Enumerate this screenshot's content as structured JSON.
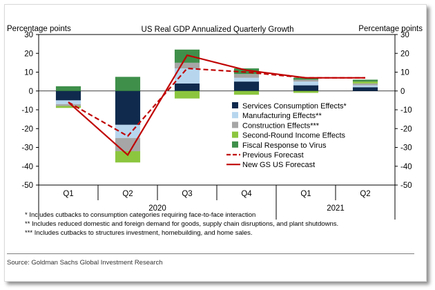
{
  "chart_data": {
    "type": "bar",
    "stacked": true,
    "title": "US Real GDP Annualized Quarterly Growth",
    "ylabel_left": "Percentage points",
    "ylabel_right": "Percentage points",
    "ylim": [
      -50,
      30
    ],
    "yticks": [
      30,
      20,
      10,
      0,
      -10,
      -20,
      -30,
      -40,
      -50
    ],
    "categories": [
      "Q1",
      "Q2",
      "Q3",
      "Q4",
      "Q1",
      "Q2"
    ],
    "years": [
      {
        "label": "2020",
        "start": 0,
        "end": 3
      },
      {
        "label": "2021",
        "start": 4,
        "end": 5
      }
    ],
    "series": [
      {
        "name": "Services Consumption Effects*",
        "color": "#0f2a4d",
        "values": [
          -5,
          -18,
          4,
          5,
          3,
          2
        ]
      },
      {
        "name": "Manufacturing Effects**",
        "color": "#b7d6ee",
        "values": [
          -2,
          -7,
          8,
          2,
          2,
          1
        ]
      },
      {
        "name": "Construction Effects***",
        "color": "#a6a6a6",
        "values": [
          -1,
          -7,
          3,
          2,
          1,
          1
        ]
      },
      {
        "name": "Second-Round Income Effects",
        "color": "#8cc63f",
        "values": [
          -1,
          -6,
          -4,
          -2,
          -1,
          1
        ]
      },
      {
        "name": "Fiscal Response to Virus",
        "color": "#3f8f4a",
        "values": [
          2.5,
          7.5,
          7,
          3,
          1,
          1
        ]
      }
    ],
    "lines": [
      {
        "name": "Previous Forecast",
        "color": "#c00000",
        "dashed": true,
        "values": [
          -6,
          -24,
          12,
          10,
          7,
          7
        ]
      },
      {
        "name": "New GS US Forecast",
        "color": "#c00000",
        "dashed": false,
        "values": [
          -6,
          -34,
          19,
          11,
          7,
          7
        ]
      }
    ]
  },
  "footnotes": [
    "* Includes cutbacks to consumption categories requiring face-to-face interaction",
    "** Includes reduced domestic and foreign demand for goods, supply chain disruptions, and plant shutdowns.",
    "*** Includes cutbacks to structures investment, homebuilding, and home sales."
  ],
  "source": "Source: Goldman Sachs Global Investment Research"
}
